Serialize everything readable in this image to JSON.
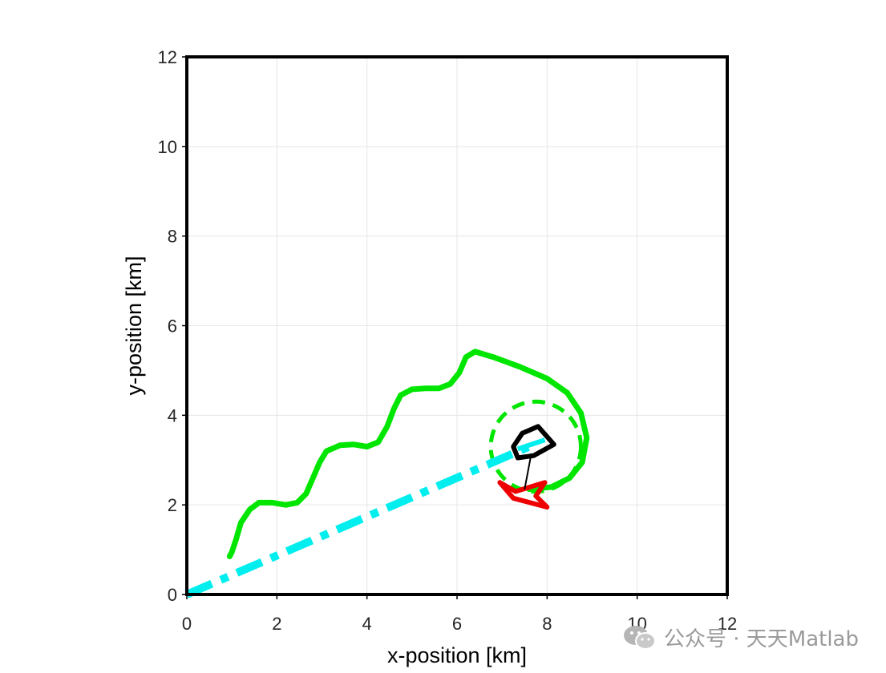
{
  "chart_data": {
    "type": "line",
    "xlabel": "x-position [km]",
    "ylabel": "y-position [km]",
    "xlim": [
      0,
      12
    ],
    "ylim": [
      0,
      12
    ],
    "xticks": [
      0,
      2,
      4,
      6,
      8,
      10,
      12
    ],
    "yticks": [
      0,
      2,
      4,
      6,
      8,
      10,
      12
    ],
    "grid": true,
    "series": [
      {
        "style": "solid",
        "color": "#00e600",
        "points": [
          [
            0.95,
            0.85
          ],
          [
            1.0,
            0.95
          ],
          [
            1.1,
            1.25
          ],
          [
            1.2,
            1.6
          ],
          [
            1.4,
            1.9
          ],
          [
            1.6,
            2.05
          ],
          [
            1.9,
            2.05
          ],
          [
            2.2,
            2.0
          ],
          [
            2.45,
            2.05
          ],
          [
            2.65,
            2.25
          ],
          [
            2.8,
            2.6
          ],
          [
            2.95,
            2.95
          ],
          [
            3.1,
            3.2
          ],
          [
            3.4,
            3.33
          ],
          [
            3.7,
            3.35
          ],
          [
            4.0,
            3.3
          ],
          [
            4.25,
            3.4
          ],
          [
            4.45,
            3.75
          ],
          [
            4.6,
            4.15
          ],
          [
            4.75,
            4.45
          ],
          [
            5.0,
            4.58
          ],
          [
            5.3,
            4.6
          ],
          [
            5.6,
            4.6
          ],
          [
            5.85,
            4.7
          ],
          [
            6.05,
            4.95
          ],
          [
            6.2,
            5.3
          ],
          [
            6.4,
            5.42
          ],
          [
            6.8,
            5.3
          ],
          [
            7.4,
            5.08
          ],
          [
            8.0,
            4.82
          ],
          [
            8.45,
            4.5
          ],
          [
            8.75,
            4.05
          ],
          [
            8.88,
            3.5
          ],
          [
            8.78,
            2.95
          ],
          [
            8.5,
            2.6
          ],
          [
            8.1,
            2.4
          ],
          [
            7.6,
            2.35
          ]
        ]
      },
      {
        "style": "dashed",
        "color": "#00e600",
        "shape": "circle",
        "center": [
          7.75,
          3.3
        ],
        "radius": 1.0
      },
      {
        "style": "dash-dot",
        "color": "#00eeee",
        "points": [
          [
            0,
            0
          ],
          [
            7.6,
            3.3
          ]
        ]
      }
    ],
    "polygons": [
      {
        "name": "",
        "color": "#000000",
        "points": [
          [
            7.8,
            3.75
          ],
          [
            8.15,
            3.35
          ],
          [
            7.7,
            3.1
          ],
          [
            7.35,
            3.05
          ],
          [
            7.25,
            3.3
          ],
          [
            7.45,
            3.6
          ]
        ]
      },
      {
        "name": "",
        "color": "#ee0000",
        "points": [
          [
            6.95,
            2.5
          ],
          [
            7.3,
            2.3
          ],
          [
            7.95,
            2.5
          ],
          [
            7.75,
            2.2
          ],
          [
            8.0,
            1.95
          ],
          [
            7.25,
            2.15
          ]
        ]
      }
    ],
    "annotations": [
      {
        "color": "#000000",
        "points": [
          [
            7.65,
            3.15
          ],
          [
            7.5,
            2.35
          ]
        ]
      },
      {
        "color": "#00eeee",
        "points": [
          [
            7.35,
            3.25
          ],
          [
            7.95,
            3.45
          ]
        ]
      }
    ]
  },
  "watermark": {
    "text": "公众号 · 天天Matlab",
    "icon": "wechat-icon"
  }
}
